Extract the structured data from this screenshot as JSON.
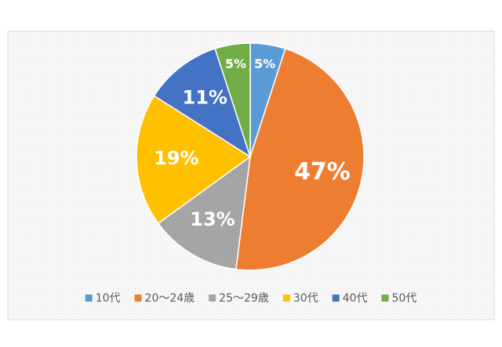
{
  "chart_data": {
    "type": "pie",
    "categories": [
      "10代",
      "20～24歳",
      "25～29歳",
      "30代",
      "40代",
      "50代"
    ],
    "values": [
      5,
      47,
      13,
      19,
      11,
      5
    ],
    "value_labels": [
      "5%",
      "47%",
      "13%",
      "19%",
      "11%",
      "5%"
    ],
    "colors": [
      "#5b9bd5",
      "#ed7d31",
      "#a5a5a5",
      "#ffc000",
      "#4472c4",
      "#70ad47"
    ],
    "legend": "bottom"
  }
}
